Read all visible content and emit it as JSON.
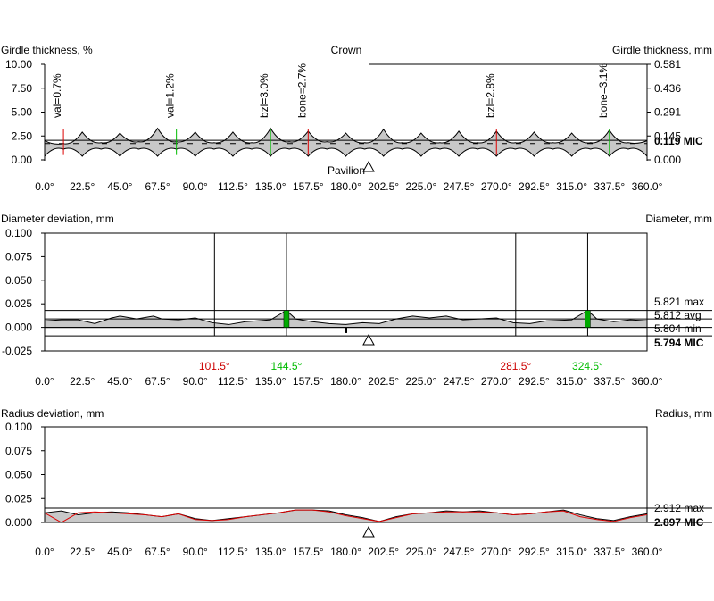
{
  "x_ticks": [
    "0.0°",
    "22.5°",
    "45.0°",
    "67.5°",
    "90.0°",
    "112.5°",
    "135.0°",
    "157.5°",
    "180.0°",
    "202.5°",
    "225.0°",
    "247.5°",
    "270.0°",
    "292.5°",
    "315.0°",
    "337.5°",
    "360.0°"
  ],
  "panel1": {
    "left_title": "Girdle thickness, %",
    "center_title": "Crown",
    "right_title": "Girdle thickness, mm",
    "bottom_label": "Pavilion",
    "y_ticks_left": [
      "10.00",
      "7.50",
      "5.00",
      "2.50",
      "0.00"
    ],
    "y_ticks_right": [
      "0.581",
      "0.436",
      "0.291",
      "0.145",
      "0.000"
    ],
    "mic_value": "0.119 MIC",
    "annotations": [
      {
        "text": "val=0.7%",
        "angle": 11.25,
        "color": "#dd0000"
      },
      {
        "text": "val=1.2%",
        "angle": 78.75,
        "color": "#00bb00"
      },
      {
        "text": "bzl=3.0%",
        "angle": 135.0,
        "color": "#00bb00"
      },
      {
        "text": "bone=2.7%",
        "angle": 157.5,
        "color": "#dd0000"
      },
      {
        "text": "bzl=2.8%",
        "angle": 270.0,
        "color": "#dd0000"
      },
      {
        "text": "bone=3.1%",
        "angle": 337.5,
        "color": "#00bb00"
      }
    ]
  },
  "panel2": {
    "left_title": "Diameter deviation, mm",
    "right_title": "Diameter, mm",
    "y_ticks": [
      "0.100",
      "0.075",
      "0.050",
      "0.025",
      "0.000",
      "-0.025"
    ],
    "right_labels": [
      "5.821 max",
      "5.812 avg",
      "5.804 min"
    ],
    "mic_value": "5.794 MIC",
    "angle_labels": [
      {
        "text": "101.5°",
        "angle": 101.5,
        "color": "#cc0000"
      },
      {
        "text": "144.5°",
        "angle": 144.5,
        "color": "#00bb00"
      },
      {
        "text": "281.5°",
        "angle": 281.5,
        "color": "#cc0000"
      },
      {
        "text": "324.5°",
        "angle": 324.5,
        "color": "#00bb00"
      }
    ]
  },
  "panel3": {
    "left_title": "Radius deviation, mm",
    "right_title": "Radius, mm",
    "y_ticks": [
      "0.100",
      "0.075",
      "0.050",
      "0.025",
      "0.000"
    ],
    "right_labels": [
      "2.912 max"
    ],
    "mic_value": "2.897 MIC"
  },
  "chart_data": [
    {
      "type": "area",
      "title": "Crown",
      "xlabel": "Pavilion",
      "ylabel": "Girdle thickness, %",
      "ylabel_right": "Girdle thickness, mm",
      "x_range": [
        0,
        360
      ],
      "ylim": [
        0,
        10
      ],
      "ylim_right": [
        0,
        0.581
      ],
      "mic_mm": 0.119,
      "series": [
        {
          "x": [
            0,
            11.25,
            22.5,
            33.75,
            45,
            56.25,
            67.5,
            78.75,
            90,
            101.25,
            112.5,
            123.75,
            135,
            146.25,
            157.5,
            168.75,
            180,
            191.25,
            202.5,
            213.75,
            225,
            236.25,
            247.5,
            258.75,
            270,
            281.25,
            292.5,
            303.75,
            315,
            326.25,
            337.5,
            348.75,
            360
          ],
          "y": [
            2.0,
            1.7,
            2.9,
            1.8,
            2.8,
            1.9,
            3.3,
            1.9,
            2.9,
            1.8,
            2.9,
            1.8,
            3.3,
            1.9,
            3.0,
            1.9,
            2.8,
            1.8,
            3.2,
            1.8,
            2.8,
            1.8,
            3.0,
            1.8,
            3.0,
            1.8,
            2.9,
            1.8,
            2.8,
            1.8,
            3.1,
            1.8,
            2.0
          ]
        }
      ]
    },
    {
      "type": "area",
      "ylabel": "Diameter deviation, mm",
      "ylabel_right": "Diameter, mm",
      "x_range": [
        0,
        360
      ],
      "ylim": [
        -0.025,
        0.1
      ],
      "max_mm": 5.821,
      "avg_mm": 5.812,
      "min_mm": 5.804,
      "mic_mm": 5.794,
      "markers_deg": [
        101.5,
        144.5,
        281.5,
        324.5
      ],
      "x": [
        0,
        10,
        20,
        30,
        40,
        45,
        55,
        65,
        70,
        80,
        90,
        100,
        110,
        120,
        135,
        144.5,
        150,
        160,
        170,
        180,
        190,
        200,
        210,
        220,
        230,
        240,
        250,
        260,
        270,
        280,
        290,
        300,
        315,
        324.5,
        330,
        340,
        350,
        360
      ],
      "values": [
        0.007,
        0.008,
        0.008,
        0.004,
        0.01,
        0.012,
        0.009,
        0.012,
        0.009,
        0.008,
        0.01,
        0.005,
        0.003,
        0.006,
        0.008,
        0.018,
        0.009,
        0.006,
        0.004,
        0.003,
        0.005,
        0.004,
        0.009,
        0.012,
        0.01,
        0.012,
        0.008,
        0.009,
        0.01,
        0.005,
        0.004,
        0.007,
        0.008,
        0.018,
        0.009,
        0.006,
        0.008,
        0.007
      ]
    },
    {
      "type": "area",
      "ylabel": "Radius deviation, mm",
      "ylabel_right": "Radius, mm",
      "x_range": [
        0,
        360
      ],
      "ylim": [
        0,
        0.1
      ],
      "max_mm": 2.912,
      "mic_mm": 2.897,
      "x": [
        0,
        10,
        20,
        30,
        40,
        50,
        60,
        70,
        80,
        90,
        100,
        110,
        120,
        130,
        140,
        150,
        160,
        170,
        180,
        190,
        200,
        210,
        220,
        230,
        240,
        250,
        260,
        270,
        280,
        290,
        300,
        310,
        320,
        330,
        340,
        350,
        360
      ],
      "values": [
        0.01,
        0.012,
        0.008,
        0.01,
        0.011,
        0.01,
        0.008,
        0.006,
        0.009,
        0.004,
        0.002,
        0.004,
        0.006,
        0.008,
        0.01,
        0.013,
        0.013,
        0.012,
        0.008,
        0.005,
        0.001,
        0.006,
        0.009,
        0.01,
        0.012,
        0.011,
        0.012,
        0.01,
        0.008,
        0.009,
        0.011,
        0.013,
        0.008,
        0.004,
        0.002,
        0.006,
        0.009
      ],
      "red_values": [
        0.01,
        0.0,
        0.01,
        0.011,
        0.01,
        0.009,
        0.008,
        0.006,
        0.009,
        0.003,
        0.002,
        0.003,
        0.006,
        0.008,
        0.01,
        0.013,
        0.013,
        0.011,
        0.007,
        0.004,
        0.001,
        0.005,
        0.009,
        0.01,
        0.011,
        0.011,
        0.011,
        0.01,
        0.008,
        0.009,
        0.011,
        0.012,
        0.006,
        0.003,
        0.001,
        0.005,
        0.008
      ]
    }
  ]
}
